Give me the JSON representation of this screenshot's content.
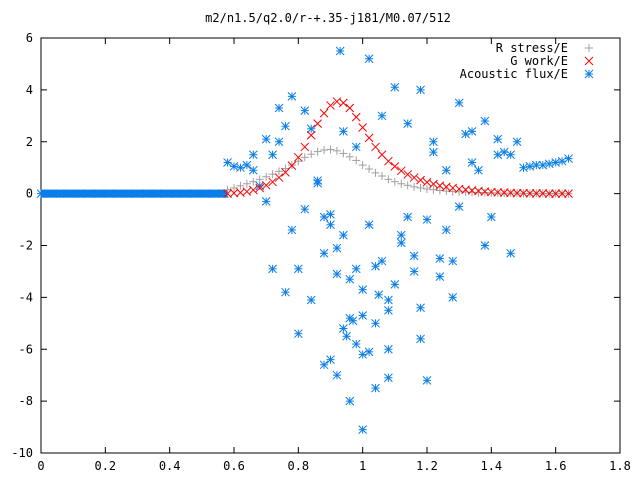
{
  "chart_data": {
    "type": "scatter",
    "title": "m2/n1.5/q2.0/r-+.35-j181/M0.07/512",
    "xlabel": "",
    "ylabel": "",
    "xlim": [
      0,
      1.8
    ],
    "ylim": [
      -10,
      6
    ],
    "grid": false,
    "legend_position": "top-right",
    "x_ticks": [
      "0",
      "0.2",
      "0.4",
      "0.6",
      "0.8",
      "1",
      "1.2",
      "1.4",
      "1.6",
      "1.8"
    ],
    "y_ticks": [
      "6",
      "4",
      "2",
      "0",
      "-2",
      "-4",
      "-6",
      "-8",
      "-10"
    ],
    "series": [
      {
        "name": "R stress/E",
        "color": "#a0a0a0",
        "marker": "plus",
        "x": [
          0.58,
          0.6,
          0.62,
          0.64,
          0.66,
          0.68,
          0.7,
          0.72,
          0.74,
          0.76,
          0.78,
          0.8,
          0.82,
          0.84,
          0.86,
          0.88,
          0.9,
          0.92,
          0.94,
          0.96,
          0.98,
          1.0,
          1.02,
          1.04,
          1.06,
          1.08,
          1.1,
          1.12,
          1.14,
          1.16,
          1.18,
          1.2,
          1.22,
          1.24,
          1.26,
          1.28,
          1.3,
          1.32,
          1.34,
          1.36,
          1.38,
          1.4,
          1.42,
          1.44,
          1.46,
          1.48,
          1.5,
          1.52,
          1.54,
          1.56,
          1.58,
          1.6,
          1.62,
          1.64
        ],
        "y": [
          0.15,
          0.22,
          0.3,
          0.38,
          0.46,
          0.55,
          0.65,
          0.75,
          0.86,
          0.97,
          1.1,
          1.25,
          1.4,
          1.52,
          1.62,
          1.68,
          1.7,
          1.65,
          1.55,
          1.42,
          1.28,
          1.1,
          0.95,
          0.8,
          0.68,
          0.55,
          0.46,
          0.38,
          0.32,
          0.26,
          0.22,
          0.18,
          0.15,
          0.12,
          0.1,
          0.08,
          0.07,
          0.06,
          0.05,
          0.04,
          0.04,
          0.03,
          0.03,
          0.02,
          0.02,
          0.02,
          0.01,
          0.01,
          0.01,
          0.01,
          0.0,
          0.0,
          0.0,
          0.0
        ]
      },
      {
        "name": "G work/E",
        "color": "#ff0000",
        "marker": "cross",
        "x": [
          0.58,
          0.6,
          0.62,
          0.64,
          0.66,
          0.68,
          0.7,
          0.72,
          0.74,
          0.76,
          0.78,
          0.8,
          0.82,
          0.84,
          0.86,
          0.88,
          0.9,
          0.92,
          0.94,
          0.96,
          0.98,
          1.0,
          1.02,
          1.04,
          1.06,
          1.08,
          1.1,
          1.12,
          1.14,
          1.16,
          1.18,
          1.2,
          1.22,
          1.24,
          1.26,
          1.28,
          1.3,
          1.32,
          1.34,
          1.36,
          1.38,
          1.4,
          1.42,
          1.44,
          1.46,
          1.48,
          1.5,
          1.52,
          1.54,
          1.56,
          1.58,
          1.6,
          1.62,
          1.64
        ],
        "y": [
          0.0,
          0.02,
          0.04,
          0.08,
          0.14,
          0.22,
          0.32,
          0.45,
          0.62,
          0.82,
          1.08,
          1.4,
          1.8,
          2.25,
          2.7,
          3.1,
          3.4,
          3.55,
          3.5,
          3.3,
          2.95,
          2.55,
          2.15,
          1.8,
          1.5,
          1.25,
          1.05,
          0.88,
          0.74,
          0.62,
          0.52,
          0.44,
          0.37,
          0.31,
          0.26,
          0.22,
          0.18,
          0.15,
          0.12,
          0.1,
          0.08,
          0.06,
          0.05,
          0.04,
          0.03,
          0.02,
          0.02,
          0.01,
          0.01,
          0.01,
          0.0,
          0.0,
          0.0,
          0.0
        ]
      },
      {
        "name": "Acoustic flux/E",
        "color": "#0a7ee8",
        "marker": "star",
        "x": [
          0.0,
          0.03,
          0.06,
          0.09,
          0.12,
          0.15,
          0.18,
          0.21,
          0.24,
          0.27,
          0.3,
          0.33,
          0.36,
          0.39,
          0.42,
          0.45,
          0.48,
          0.51,
          0.54,
          0.57,
          0.58,
          0.6,
          0.62,
          0.64,
          0.66,
          0.68,
          0.7,
          0.72,
          0.74,
          0.76,
          0.78,
          0.8,
          0.82,
          0.84,
          0.86,
          0.88,
          0.9,
          0.92,
          0.94,
          0.96,
          0.98,
          1.0,
          1.02,
          1.04,
          1.06,
          1.08,
          1.1,
          1.12,
          1.14,
          1.16,
          1.18,
          1.2,
          1.22,
          1.24,
          1.26,
          1.28,
          1.3,
          1.32,
          1.34,
          1.36,
          1.38,
          1.4,
          1.42,
          1.44,
          1.46,
          1.48,
          1.5,
          1.52,
          1.54,
          1.56,
          1.58,
          1.6,
          1.62,
          1.64,
          0.66,
          0.7,
          0.74,
          0.78,
          0.82,
          0.86,
          0.9,
          0.94,
          0.98,
          1.02,
          1.06,
          1.1,
          1.14,
          1.18,
          1.22,
          1.26,
          1.3,
          1.34,
          1.38,
          1.42,
          1.46,
          0.72,
          0.76,
          0.8,
          0.84,
          0.88,
          0.92,
          0.96,
          1.0,
          1.04,
          1.08,
          1.12,
          1.16,
          1.2,
          1.24,
          1.28,
          0.88,
          0.92,
          0.96,
          1.0,
          1.04,
          1.08,
          0.9,
          0.94,
          0.98,
          1.02,
          0.95,
          1.0,
          1.05,
          1.08,
          1.18,
          0.93,
          0.97
        ],
        "y": [
          0.0,
          0.0,
          0.0,
          0.0,
          0.0,
          0.0,
          0.0,
          0.0,
          0.0,
          0.0,
          0.0,
          0.0,
          0.0,
          0.0,
          0.0,
          0.0,
          0.0,
          0.0,
          0.0,
          0.0,
          1.2,
          1.05,
          1.0,
          1.1,
          0.9,
          0.3,
          2.1,
          1.5,
          3.3,
          2.6,
          -1.4,
          -2.9,
          3.2,
          2.5,
          0.4,
          -2.3,
          -0.8,
          -3.1,
          -1.6,
          -4.8,
          -2.9,
          -3.7,
          -1.2,
          -5.0,
          -2.6,
          -4.1,
          -3.5,
          -1.9,
          -0.9,
          -2.4,
          -4.4,
          -1.0,
          2.0,
          -3.2,
          -1.4,
          -2.6,
          -0.5,
          2.3,
          1.2,
          0.9,
          2.8,
          -0.9,
          2.1,
          1.6,
          1.5,
          2.0,
          1.0,
          1.05,
          1.1,
          1.1,
          1.15,
          1.2,
          1.25,
          1.35,
          1.5,
          -0.3,
          2.0,
          3.75,
          -0.6,
          0.5,
          -1.2,
          2.4,
          1.8,
          5.2,
          3.0,
          4.1,
          2.7,
          4.0,
          1.6,
          0.9,
          3.5,
          2.4,
          -2.0,
          1.5,
          -2.3,
          -2.9,
          -3.8,
          -5.4,
          -4.1,
          -0.9,
          -2.1,
          -3.3,
          -4.7,
          -2.8,
          -4.5,
          -1.6,
          -3.0,
          -7.2,
          -2.5,
          -4.0,
          -6.6,
          -7.0,
          -8.0,
          -9.1,
          -7.5,
          -7.1,
          -6.4,
          -5.2,
          -5.8,
          -6.1,
          -5.5,
          -6.2,
          -3.9,
          -6.0,
          -5.6,
          5.5,
          -4.9
        ]
      }
    ]
  }
}
